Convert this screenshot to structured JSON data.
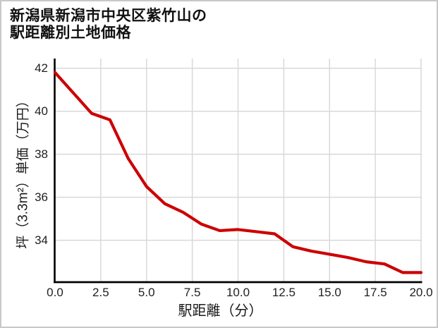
{
  "title": {
    "line1": "新潟県新潟市中央区紫竹山の",
    "line2": "駅距離別土地価格"
  },
  "colors": {
    "line": "#cc0000",
    "grid": "#d9d9d9",
    "spine": "#000000",
    "text": "#1a1a1a",
    "frame_border": "#c8c8c8",
    "background": "#ffffff"
  },
  "chart_data": {
    "type": "line",
    "title": "新潟県新潟市中央区紫竹山の駅距離別土地価格",
    "xlabel": "駅距離（分）",
    "ylabel": "坪（3.3m²）単価（万円）",
    "x": [
      0,
      1,
      2,
      3,
      4,
      5,
      6,
      7,
      8,
      9,
      10,
      11,
      12,
      13,
      14,
      15,
      16,
      17,
      18,
      19,
      20
    ],
    "values": [
      41.8,
      40.85,
      39.9,
      39.6,
      37.8,
      36.5,
      35.7,
      35.3,
      34.75,
      34.45,
      34.5,
      34.4,
      34.3,
      33.7,
      33.5,
      33.35,
      33.2,
      33.0,
      32.9,
      32.5,
      32.5
    ],
    "xlim": [
      0,
      20
    ],
    "ylim": [
      32.07,
      42.45
    ],
    "xticks": [
      "0.0",
      "2.5",
      "5.0",
      "7.5",
      "10.0",
      "12.5",
      "15.0",
      "17.5",
      "20.0"
    ],
    "yticks": [
      "42",
      "40",
      "38",
      "36",
      "34"
    ],
    "grid": true,
    "legend": false,
    "line_color": "#cc0000",
    "line_width": 4.2
  }
}
